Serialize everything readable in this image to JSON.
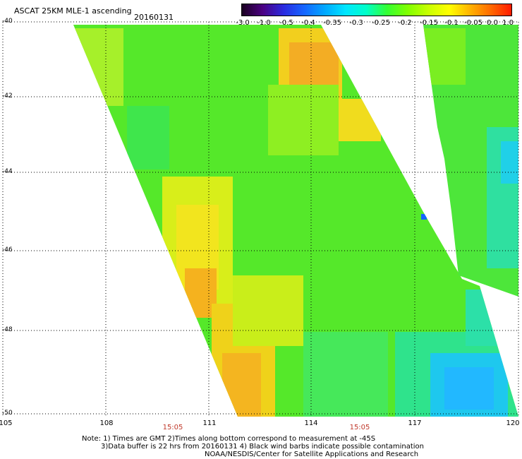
{
  "header": {
    "title": "ASCAT 25KM MLE-1 ascending",
    "date": "20160131"
  },
  "colorbar": {
    "labels": [
      "-3.0",
      "-1.0",
      "-0.5",
      "-0.4",
      "-0.35",
      "-0.3",
      "-0.25",
      "-0.2",
      "-0.15",
      "-0.1",
      "-0.05",
      "0.0",
      "1.0"
    ],
    "colors": [
      "#1a0020",
      "#4b0082",
      "#2a2adf",
      "#1565ff",
      "#00a8ff",
      "#00e6ff",
      "#00ffc8",
      "#33ff33",
      "#80ff00",
      "#c8ff00",
      "#ffff00",
      "#ffb300",
      "#ff6a00",
      "#ff1a00"
    ]
  },
  "map": {
    "lat_labels": [
      "-40",
      "-42",
      "-44",
      "-46",
      "-48",
      "-50"
    ],
    "lon_labels": [
      "105",
      "108",
      "111",
      "114",
      "117",
      "120"
    ],
    "time_labels": [
      "15:05",
      "15:05"
    ]
  },
  "notes": {
    "line1": "Note: 1) Times are GMT 2)Times along bottom correspond to measurement at -45S",
    "line2": "3)Data buffer is 22 hrs from 20160131 4) Black wind barbs indicate possible contamination",
    "line3": "NOAA/NESDIS/Center for Satellite Applications and Research"
  }
}
